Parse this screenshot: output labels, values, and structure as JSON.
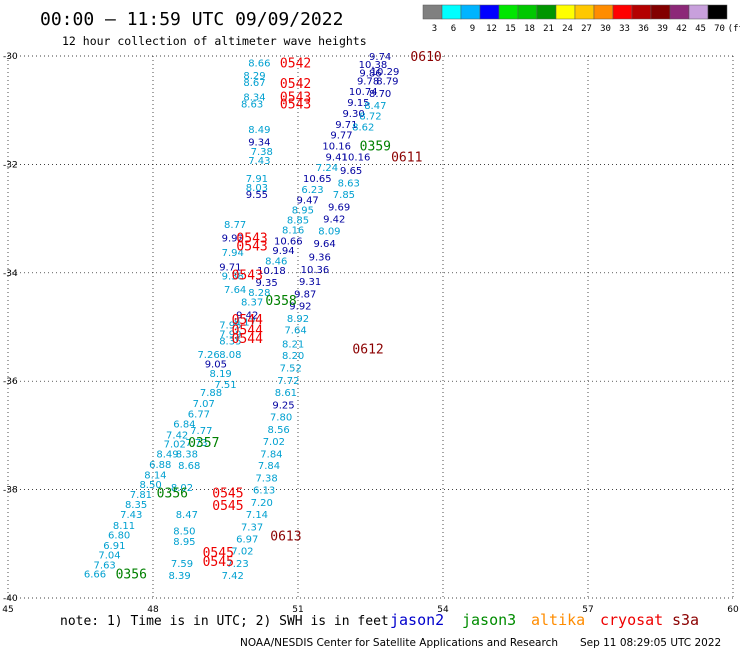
{
  "header": {
    "title": "00:00 – 11:59 UTC 09/09/2022",
    "subtitle": "12 hour collection of altimeter wave heights"
  },
  "legend": {
    "colors": [
      "#808080",
      "#00ffff",
      "#00b4ff",
      "#0000ff",
      "#00e600",
      "#00c800",
      "#009600",
      "#ffff00",
      "#ffc800",
      "#ff8c00",
      "#ff0000",
      "#b40000",
      "#820000",
      "#8c2878",
      "#c8a0dc",
      "#000000"
    ],
    "labels": [
      "3",
      "6",
      "9",
      "12",
      "15",
      "18",
      "21",
      "24",
      "27",
      "30",
      "33",
      "36",
      "39",
      "42",
      "45",
      "70",
      "(ft)"
    ]
  },
  "footer": {
    "note": "note: 1) Time is in UTC; 2) SWH is in feet",
    "satellites": [
      {
        "name": "jason2",
        "color": "#0000cc"
      },
      {
        "name": "jason3",
        "color": "#008c00"
      },
      {
        "name": "altika",
        "color": "#ff8c00"
      },
      {
        "name": "cryosat",
        "color": "#ee0000"
      },
      {
        "name": "s3a",
        "color": "#8b0000"
      }
    ],
    "credit": "NOAA/NESDIS Center for Satellite Applications and Research",
    "timestamp": "Sep 11 08:29:05 UTC 2022"
  },
  "chart_data": {
    "type": "scatter",
    "title": "00:00 – 11:59 UTC 09/09/2022",
    "subtitle": "12 hour collection of altimeter wave heights",
    "xlim": [
      45,
      60
    ],
    "ylim": [
      -40,
      -30
    ],
    "x_ticks": [
      "45",
      "48",
      "51",
      "54",
      "57",
      "60"
    ],
    "y_ticks": [
      "-30",
      "-32",
      "-34",
      "-36",
      "-38",
      "-40"
    ],
    "grid": true,
    "colors": {
      "c": "#00a0d0",
      "b": "#0000a0",
      "g": "#008000",
      "r": "#ee0000",
      "d": "#8b0000"
    },
    "points": [
      {
        "x": 46.8,
        "y": -39.55,
        "t": "6.66",
        "c": "c"
      },
      {
        "x": 47.0,
        "y": -39.38,
        "t": "7.63",
        "c": "c"
      },
      {
        "x": 47.1,
        "y": -39.2,
        "t": "7.04",
        "c": "c"
      },
      {
        "x": 47.2,
        "y": -39.02,
        "t": "6.91",
        "c": "c"
      },
      {
        "x": 47.3,
        "y": -38.83,
        "t": "6.80",
        "c": "c"
      },
      {
        "x": 47.4,
        "y": -38.65,
        "t": "8.11",
        "c": "c"
      },
      {
        "x": 47.55,
        "y": -38.45,
        "t": "7.43",
        "c": "c"
      },
      {
        "x": 47.65,
        "y": -38.27,
        "t": "8.35",
        "c": "c"
      },
      {
        "x": 47.75,
        "y": -38.08,
        "t": "7.81",
        "c": "c"
      },
      {
        "x": 47.95,
        "y": -37.9,
        "t": "8.50",
        "c": "c"
      },
      {
        "x": 48.05,
        "y": -37.72,
        "t": "8.14",
        "c": "c"
      },
      {
        "x": 48.15,
        "y": -37.53,
        "t": "6.88",
        "c": "c"
      },
      {
        "x": 48.3,
        "y": -37.33,
        "t": "8.49",
        "c": "c"
      },
      {
        "x": 48.45,
        "y": -37.15,
        "t": "7.02",
        "c": "c"
      },
      {
        "x": 48.5,
        "y": -36.98,
        "t": "7.42",
        "c": "c"
      },
      {
        "x": 48.65,
        "y": -36.78,
        "t": "6.84",
        "c": "c"
      },
      {
        "x": 48.95,
        "y": -36.6,
        "t": "6.77",
        "c": "c"
      },
      {
        "x": 49.05,
        "y": -36.4,
        "t": "7.07",
        "c": "c"
      },
      {
        "x": 49.4,
        "y": -35.85,
        "t": "8.19",
        "c": "c"
      },
      {
        "x": 49.3,
        "y": -35.67,
        "t": "9.05",
        "c": "b"
      },
      {
        "x": 49.15,
        "y": -35.5,
        "t": "7.26",
        "c": "c"
      },
      {
        "x": 49.6,
        "y": -35.5,
        "t": "8.08",
        "c": "c"
      },
      {
        "x": 49.6,
        "y": -35.12,
        "t": "7.99",
        "c": "c"
      },
      {
        "x": 49.9,
        "y": -34.9,
        "t": "8.17",
        "c": "c"
      },
      {
        "x": 49.95,
        "y": -34.77,
        "t": "9.42",
        "c": "b"
      },
      {
        "x": 50.05,
        "y": -34.53,
        "t": "8.37",
        "c": "c"
      },
      {
        "x": 50.2,
        "y": -34.35,
        "t": "8.28",
        "c": "c"
      },
      {
        "x": 50.35,
        "y": -34.17,
        "t": "9.35",
        "c": "b"
      },
      {
        "x": 50.45,
        "y": -33.95,
        "t": "10.18",
        "c": "b"
      },
      {
        "x": 50.55,
        "y": -33.77,
        "t": "8.46",
        "c": "c"
      },
      {
        "x": 50.7,
        "y": -33.58,
        "t": "9.94",
        "c": "b"
      },
      {
        "x": 50.8,
        "y": -33.4,
        "t": "10.66",
        "c": "b"
      },
      {
        "x": 50.9,
        "y": -33.2,
        "t": "8.16",
        "c": "c"
      },
      {
        "x": 51.0,
        "y": -33.02,
        "t": "8.85",
        "c": "c"
      },
      {
        "x": 51.1,
        "y": -32.83,
        "t": "8.95",
        "c": "c"
      },
      {
        "x": 51.2,
        "y": -32.65,
        "t": "9.47",
        "c": "b"
      },
      {
        "x": 51.3,
        "y": -32.45,
        "t": "6.23",
        "c": "c"
      },
      {
        "x": 51.4,
        "y": -32.25,
        "t": "10.65",
        "c": "b"
      },
      {
        "x": 51.6,
        "y": -32.05,
        "t": "7.24",
        "c": "c"
      },
      {
        "x": 51.8,
        "y": -31.85,
        "t": "9.41",
        "c": "b"
      },
      {
        "x": 51.8,
        "y": -31.65,
        "t": "10.16",
        "c": "b"
      },
      {
        "x": 51.9,
        "y": -31.45,
        "t": "9.77",
        "c": "b"
      },
      {
        "x": 52.0,
        "y": -31.25,
        "t": "9.71",
        "c": "b"
      },
      {
        "x": 52.15,
        "y": -31.05,
        "t": "9.30",
        "c": "b"
      },
      {
        "x": 52.25,
        "y": -30.85,
        "t": "9.15",
        "c": "b"
      },
      {
        "x": 52.35,
        "y": -30.65,
        "t": "10.74",
        "c": "b"
      },
      {
        "x": 52.45,
        "y": -30.45,
        "t": "9.78",
        "c": "b"
      },
      {
        "x": 52.5,
        "y": -30.3,
        "t": "9.86",
        "c": "b"
      },
      {
        "x": 52.55,
        "y": -30.15,
        "t": "10.38",
        "c": "b"
      },
      {
        "x": 52.7,
        "y": -30.0,
        "t": "9.74",
        "c": "b"
      },
      {
        "x": 52.8,
        "y": -30.28,
        "t": "10.29",
        "c": "b"
      },
      {
        "x": 52.85,
        "y": -30.45,
        "t": "8.79",
        "c": "b"
      },
      {
        "x": 52.7,
        "y": -30.68,
        "t": "8.70",
        "c": "b"
      },
      {
        "x": 52.6,
        "y": -30.9,
        "t": "8.47",
        "c": "c"
      },
      {
        "x": 52.5,
        "y": -31.1,
        "t": "8.72",
        "c": "c"
      },
      {
        "x": 52.35,
        "y": -31.3,
        "t": "8.62",
        "c": "c"
      },
      {
        "x": 52.2,
        "y": -31.85,
        "t": "10.16",
        "c": "b"
      },
      {
        "x": 52.1,
        "y": -32.1,
        "t": "9.65",
        "c": "b"
      },
      {
        "x": 52.05,
        "y": -32.33,
        "t": "8.63",
        "c": "c"
      },
      {
        "x": 51.95,
        "y": -32.55,
        "t": "7.85",
        "c": "c"
      },
      {
        "x": 51.85,
        "y": -32.78,
        "t": "9.69",
        "c": "b"
      },
      {
        "x": 51.75,
        "y": -33.0,
        "t": "9.42",
        "c": "b"
      },
      {
        "x": 51.65,
        "y": -33.22,
        "t": "8.09",
        "c": "c"
      },
      {
        "x": 51.55,
        "y": -33.45,
        "t": "9.64",
        "c": "b"
      },
      {
        "x": 51.45,
        "y": -33.7,
        "t": "9.36",
        "c": "b"
      },
      {
        "x": 51.35,
        "y": -33.93,
        "t": "10.36",
        "c": "b"
      },
      {
        "x": 51.25,
        "y": -34.15,
        "t": "9.31",
        "c": "b"
      },
      {
        "x": 51.15,
        "y": -34.38,
        "t": "9.87",
        "c": "b"
      },
      {
        "x": 51.05,
        "y": -34.6,
        "t": "9.92",
        "c": "b"
      },
      {
        "x": 51.0,
        "y": -34.83,
        "t": "8.92",
        "c": "c"
      },
      {
        "x": 50.95,
        "y": -35.05,
        "t": "7.64",
        "c": "c"
      },
      {
        "x": 50.9,
        "y": -35.3,
        "t": "8.21",
        "c": "c"
      },
      {
        "x": 50.9,
        "y": -35.52,
        "t": "8.20",
        "c": "c"
      },
      {
        "x": 50.85,
        "y": -35.75,
        "t": "7.52",
        "c": "c"
      },
      {
        "x": 50.8,
        "y": -35.98,
        "t": "7.72",
        "c": "c"
      },
      {
        "x": 50.75,
        "y": -36.2,
        "t": "8.61",
        "c": "c"
      },
      {
        "x": 50.7,
        "y": -36.43,
        "t": "9.25",
        "c": "b"
      },
      {
        "x": 50.65,
        "y": -36.65,
        "t": "7.80",
        "c": "c"
      },
      {
        "x": 50.6,
        "y": -36.88,
        "t": "8.56",
        "c": "c"
      },
      {
        "x": 50.5,
        "y": -37.1,
        "t": "7.02",
        "c": "c"
      },
      {
        "x": 50.45,
        "y": -37.33,
        "t": "7.84",
        "c": "c"
      },
      {
        "x": 50.4,
        "y": -37.55,
        "t": "7.84",
        "c": "c"
      },
      {
        "x": 50.35,
        "y": -37.78,
        "t": "7.38",
        "c": "c"
      },
      {
        "x": 50.3,
        "y": -38.0,
        "t": "6.13",
        "c": "c"
      },
      {
        "x": 50.25,
        "y": -38.23,
        "t": "7.20",
        "c": "c"
      },
      {
        "x": 50.15,
        "y": -38.45,
        "t": "7.14",
        "c": "c"
      },
      {
        "x": 50.05,
        "y": -38.68,
        "t": "7.37",
        "c": "c"
      },
      {
        "x": 49.95,
        "y": -38.9,
        "t": "6.97",
        "c": "c"
      },
      {
        "x": 49.85,
        "y": -39.12,
        "t": "7.02",
        "c": "c"
      },
      {
        "x": 49.75,
        "y": -39.35,
        "t": "7.23",
        "c": "c"
      },
      {
        "x": 49.65,
        "y": -39.58,
        "t": "7.42",
        "c": "c"
      },
      {
        "x": 48.6,
        "y": -39.35,
        "t": "7.59",
        "c": "c"
      },
      {
        "x": 48.55,
        "y": -39.58,
        "t": "8.39",
        "c": "c"
      },
      {
        "x": 48.65,
        "y": -38.95,
        "t": "8.95",
        "c": "c"
      },
      {
        "x": 48.65,
        "y": -38.75,
        "t": "8.50",
        "c": "c"
      },
      {
        "x": 48.7,
        "y": -38.45,
        "t": "8.47",
        "c": "c"
      },
      {
        "x": 48.6,
        "y": -37.95,
        "t": "8.02",
        "c": "c"
      },
      {
        "x": 48.75,
        "y": -37.55,
        "t": "8.68",
        "c": "c"
      },
      {
        "x": 48.7,
        "y": -37.33,
        "t": "8.38",
        "c": "c"
      },
      {
        "x": 48.9,
        "y": -37.12,
        "t": "7.73",
        "c": "c"
      },
      {
        "x": 49.0,
        "y": -36.9,
        "t": "7.77",
        "c": "c"
      },
      {
        "x": 49.2,
        "y": -36.2,
        "t": "7.88",
        "c": "c"
      },
      {
        "x": 49.5,
        "y": -36.05,
        "t": "7.51",
        "c": "c"
      },
      {
        "x": 49.7,
        "y": -33.1,
        "t": "8.77",
        "c": "c"
      },
      {
        "x": 49.65,
        "y": -33.35,
        "t": "9.92",
        "c": "b"
      },
      {
        "x": 49.65,
        "y": -33.62,
        "t": "7.94",
        "c": "c"
      },
      {
        "x": 49.6,
        "y": -33.88,
        "t": "9.71",
        "c": "b"
      },
      {
        "x": 49.65,
        "y": -34.05,
        "t": "9.38",
        "c": "c"
      },
      {
        "x": 49.7,
        "y": -34.3,
        "t": "7.64",
        "c": "c"
      },
      {
        "x": 50.2,
        "y": -30.12,
        "t": "8.66",
        "c": "c"
      },
      {
        "x": 50.1,
        "y": -30.35,
        "t": "8.29",
        "c": "c"
      },
      {
        "x": 50.1,
        "y": -30.48,
        "t": "8.67",
        "c": "c"
      },
      {
        "x": 50.1,
        "y": -30.75,
        "t": "8.34",
        "c": "c"
      },
      {
        "x": 50.05,
        "y": -30.88,
        "t": "8.63",
        "c": "c"
      },
      {
        "x": 50.2,
        "y": -31.35,
        "t": "8.49",
        "c": "c"
      },
      {
        "x": 50.2,
        "y": -31.58,
        "t": "9.34",
        "c": "b"
      },
      {
        "x": 50.25,
        "y": -31.75,
        "t": "7.38",
        "c": "c"
      },
      {
        "x": 50.2,
        "y": -31.92,
        "t": "7.43",
        "c": "c"
      },
      {
        "x": 50.15,
        "y": -32.25,
        "t": "7.91",
        "c": "c"
      },
      {
        "x": 50.15,
        "y": -32.42,
        "t": "8.03",
        "c": "c"
      },
      {
        "x": 50.15,
        "y": -32.55,
        "t": "9.55",
        "c": "b"
      },
      {
        "x": 49.6,
        "y": -34.95,
        "t": "7.95",
        "c": "c"
      },
      {
        "x": 49.6,
        "y": -35.25,
        "t": "8.35",
        "c": "c"
      }
    ],
    "passes": [
      {
        "x": 53.65,
        "y": -30.0,
        "t": "0610",
        "c": "d"
      },
      {
        "x": 50.95,
        "y": -30.12,
        "t": "0542",
        "c": "r"
      },
      {
        "x": 50.95,
        "y": -30.5,
        "t": "0542",
        "c": "r"
      },
      {
        "x": 50.95,
        "y": -30.75,
        "t": "0543",
        "c": "r"
      },
      {
        "x": 50.95,
        "y": -30.88,
        "t": "0543",
        "c": "r"
      },
      {
        "x": 52.6,
        "y": -31.65,
        "t": "0359",
        "c": "g"
      },
      {
        "x": 53.25,
        "y": -31.85,
        "t": "0611",
        "c": "d"
      },
      {
        "x": 50.05,
        "y": -33.35,
        "t": "0543",
        "c": "r"
      },
      {
        "x": 50.05,
        "y": -33.5,
        "t": "0543",
        "c": "r"
      },
      {
        "x": 49.95,
        "y": -34.03,
        "t": "0543",
        "c": "r"
      },
      {
        "x": 50.65,
        "y": -34.5,
        "t": "0358",
        "c": "g"
      },
      {
        "x": 49.95,
        "y": -34.85,
        "t": "0544",
        "c": "r"
      },
      {
        "x": 49.95,
        "y": -35.05,
        "t": "0544",
        "c": "r"
      },
      {
        "x": 49.95,
        "y": -35.2,
        "t": "0544",
        "c": "r"
      },
      {
        "x": 52.45,
        "y": -35.4,
        "t": "0612",
        "c": "d"
      },
      {
        "x": 49.05,
        "y": -37.12,
        "t": "0357",
        "c": "g"
      },
      {
        "x": 48.4,
        "y": -38.05,
        "t": "0356",
        "c": "g"
      },
      {
        "x": 49.55,
        "y": -38.05,
        "t": "0545",
        "c": "r"
      },
      {
        "x": 49.55,
        "y": -38.28,
        "t": "0545",
        "c": "r"
      },
      {
        "x": 50.75,
        "y": -38.85,
        "t": "0613",
        "c": "d"
      },
      {
        "x": 49.35,
        "y": -39.15,
        "t": "0545",
        "c": "r"
      },
      {
        "x": 49.35,
        "y": -39.32,
        "t": "0545",
        "c": "r"
      },
      {
        "x": 47.55,
        "y": -39.55,
        "t": "0356",
        "c": "g"
      }
    ]
  }
}
